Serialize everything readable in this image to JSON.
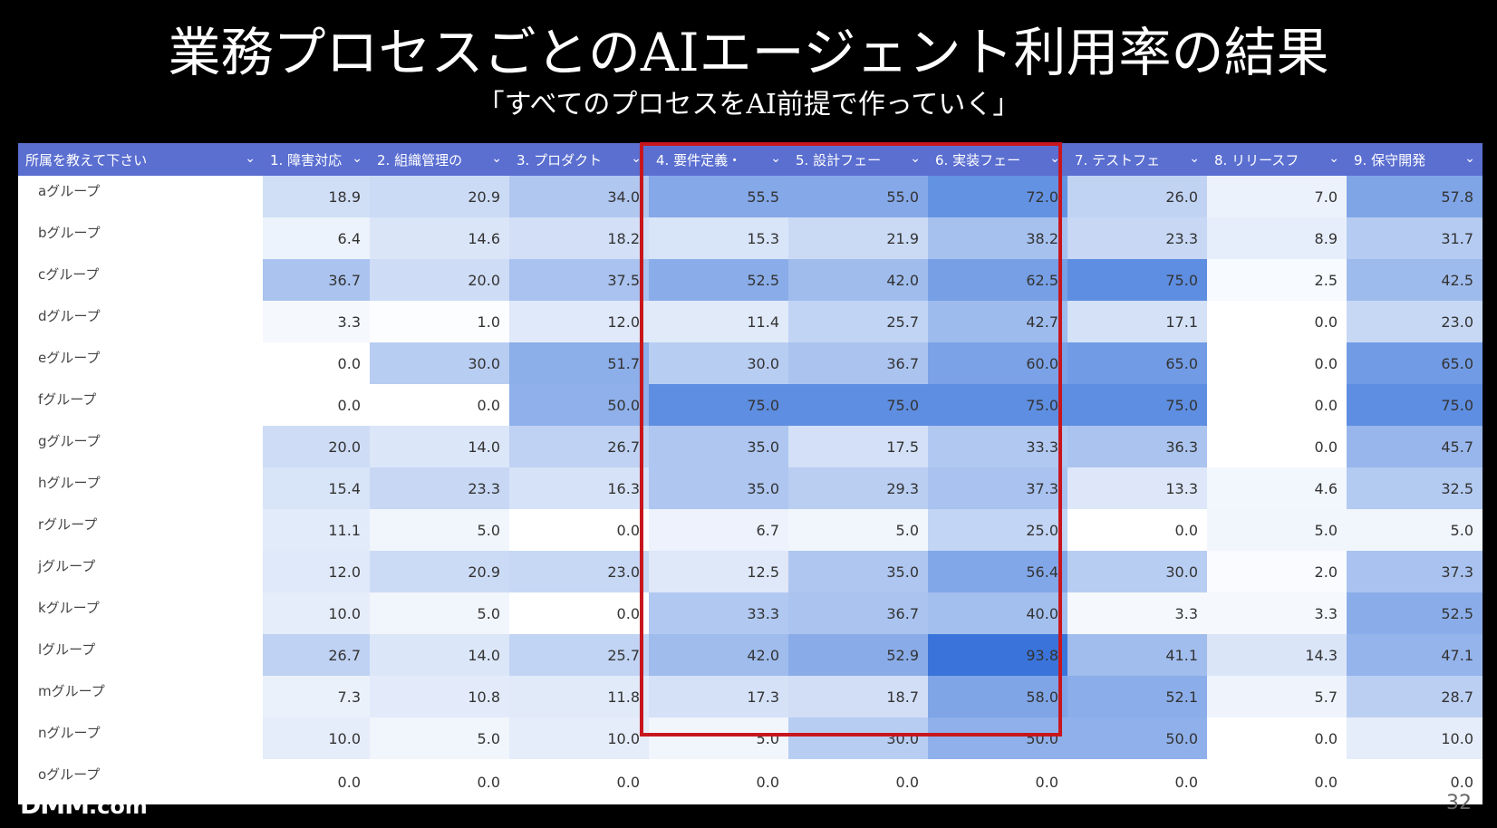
{
  "slide": {
    "title": "業務プロセスごとのAIエージェント利用率の結果",
    "subtitle": "「すべてのプロセスをAI前提で作っていく」",
    "logo_main": "DMM",
    "logo_suffix": ".com",
    "page_number": "32"
  },
  "table": {
    "columns": [
      "所属を教えて下さい",
      "1. 障害対応・",
      "2. 組織管理の",
      "3. プロダクト",
      "4. 要件定義・",
      "5. 設計フェー",
      "6. 実装フェー",
      "7. テストフェ",
      "8. リリースフ",
      "9. 保守開発"
    ],
    "highlighted_columns": [
      "4. 要件定義・",
      "5. 設計フェー",
      "6. 実装フェー"
    ],
    "highlight_color": "#c8161d",
    "header_color": "#5b6fd1",
    "rows": [
      {
        "group": "aグループ",
        "values": [
          "18.9",
          "20.9",
          "34.0",
          "55.5",
          "55.0",
          "72.0",
          "26.0",
          "7.0",
          "57.8"
        ]
      },
      {
        "group": "bグループ",
        "values": [
          "6.4",
          "14.6",
          "18.2",
          "15.3",
          "21.9",
          "38.2",
          "23.3",
          "8.9",
          "31.7"
        ]
      },
      {
        "group": "cグループ",
        "values": [
          "36.7",
          "20.0",
          "37.5",
          "52.5",
          "42.0",
          "62.5",
          "75.0",
          "2.5",
          "42.5"
        ]
      },
      {
        "group": "dグループ",
        "values": [
          "3.3",
          "1.0",
          "12.0",
          "11.4",
          "25.7",
          "42.7",
          "17.1",
          "0.0",
          "23.0"
        ]
      },
      {
        "group": "eグループ",
        "values": [
          "0.0",
          "30.0",
          "51.7",
          "30.0",
          "36.7",
          "60.0",
          "65.0",
          "0.0",
          "65.0"
        ]
      },
      {
        "group": "fグループ",
        "values": [
          "0.0",
          "0.0",
          "50.0",
          "75.0",
          "75.0",
          "75.0",
          "75.0",
          "0.0",
          "75.0"
        ]
      },
      {
        "group": "gグループ",
        "values": [
          "20.0",
          "14.0",
          "26.7",
          "35.0",
          "17.5",
          "33.3",
          "36.3",
          "0.0",
          "45.7"
        ]
      },
      {
        "group": "hグループ",
        "values": [
          "15.4",
          "23.3",
          "16.3",
          "35.0",
          "29.3",
          "37.3",
          "13.3",
          "4.6",
          "32.5"
        ]
      },
      {
        "group": "rグループ",
        "values": [
          "11.1",
          "5.0",
          "0.0",
          "6.7",
          "5.0",
          "25.0",
          "0.0",
          "5.0",
          "5.0"
        ]
      },
      {
        "group": "jグループ",
        "values": [
          "12.0",
          "20.9",
          "23.0",
          "12.5",
          "35.0",
          "56.4",
          "30.0",
          "2.0",
          "37.3"
        ]
      },
      {
        "group": "kグループ",
        "values": [
          "10.0",
          "5.0",
          "0.0",
          "33.3",
          "36.7",
          "40.0",
          "3.3",
          "3.3",
          "52.5"
        ]
      },
      {
        "group": "lグループ",
        "values": [
          "26.7",
          "14.0",
          "25.7",
          "42.0",
          "52.9",
          "93.8",
          "41.1",
          "14.3",
          "47.1"
        ]
      },
      {
        "group": "mグループ",
        "values": [
          "7.3",
          "10.8",
          "11.8",
          "17.3",
          "18.7",
          "58.0",
          "52.1",
          "5.7",
          "28.7"
        ]
      },
      {
        "group": "nグループ",
        "values": [
          "10.0",
          "5.0",
          "10.0",
          "5.0",
          "30.0",
          "50.0",
          "50.0",
          "0.0",
          "10.0"
        ]
      },
      {
        "group": "oグループ",
        "values": [
          "0.0",
          "0.0",
          "0.0",
          "0.0",
          "0.0",
          "0.0",
          "0.0",
          "0.0",
          "0.0"
        ]
      }
    ]
  }
}
